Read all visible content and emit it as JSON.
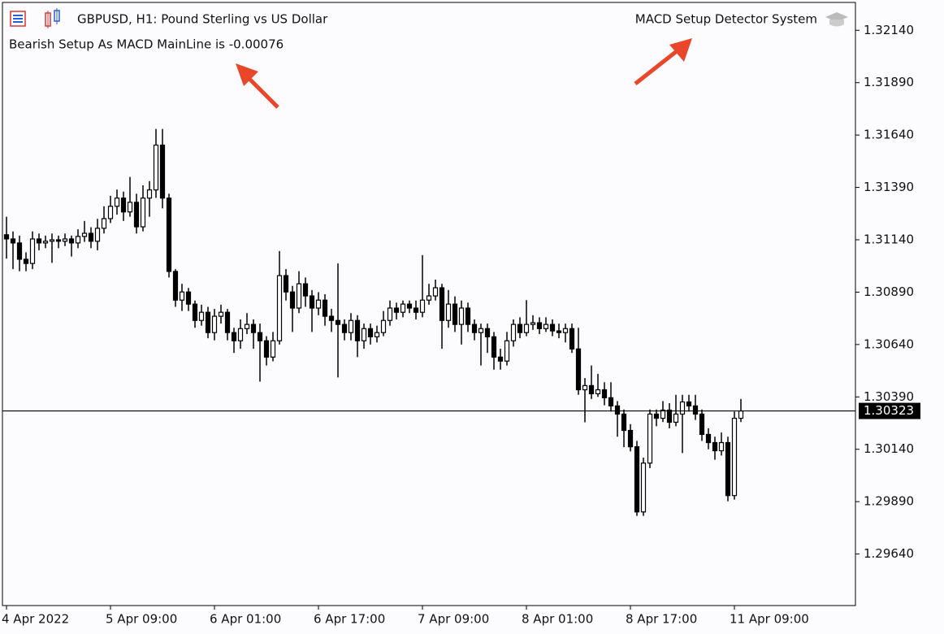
{
  "chart_data": {
    "type": "candlestick",
    "title": "GBPUSD, H1:  Pound Sterling vs US Dollar",
    "annotations": [
      "MACD Setup Detector System",
      "Bearish Setup As MACD MainLine is -0.00076"
    ],
    "current_price": {
      "value": 1.30323,
      "label": "1.30323"
    },
    "up_color": "#ffffff",
    "down_color": "#000000",
    "line_color": "#000000",
    "ylim": [
      1.29394,
      1.32273
    ],
    "yticks": [
      {
        "value": 1.3214,
        "label": "1.32140"
      },
      {
        "value": 1.3189,
        "label": "1.31890"
      },
      {
        "value": 1.3164,
        "label": "1.31640"
      },
      {
        "value": 1.3139,
        "label": "1.31390"
      },
      {
        "value": 1.3114,
        "label": "1.31140"
      },
      {
        "value": 1.3089,
        "label": "1.30890"
      },
      {
        "value": 1.3064,
        "label": "1.30640"
      },
      {
        "value": 1.3039,
        "label": "1.30390"
      },
      {
        "value": 1.3014,
        "label": "1.30140"
      },
      {
        "value": 1.2989,
        "label": "1.29890"
      },
      {
        "value": 1.2964,
        "label": "1.29640"
      }
    ],
    "categories": [
      "4 Apr 2022",
      null,
      null,
      null,
      null,
      null,
      null,
      null,
      null,
      null,
      null,
      null,
      null,
      null,
      null,
      null,
      "5 Apr 09:00",
      null,
      null,
      null,
      null,
      null,
      null,
      null,
      null,
      null,
      null,
      null,
      null,
      null,
      null,
      null,
      "6 Apr 01:00",
      null,
      null,
      null,
      null,
      null,
      null,
      null,
      null,
      null,
      null,
      null,
      null,
      null,
      null,
      null,
      "6 Apr 17:00",
      null,
      null,
      null,
      null,
      null,
      null,
      null,
      null,
      null,
      null,
      null,
      null,
      null,
      null,
      null,
      "7 Apr 09:00",
      null,
      null,
      null,
      null,
      null,
      null,
      null,
      null,
      null,
      null,
      null,
      null,
      null,
      null,
      null,
      "8 Apr 01:00",
      null,
      null,
      null,
      null,
      null,
      null,
      null,
      null,
      null,
      null,
      null,
      null,
      null,
      null,
      null,
      "8 Apr 17:00",
      null,
      null,
      null,
      null,
      null,
      null,
      null,
      null,
      null,
      null,
      null,
      null,
      null,
      null,
      null,
      "11 Apr 09:00",
      null
    ],
    "open": [
      1.31164,
      1.31144,
      1.31125,
      1.31047,
      1.31027,
      1.31144,
      1.31125,
      1.31133,
      1.3114,
      1.31133,
      1.31144,
      1.31125,
      1.31156,
      1.31171,
      1.31133,
      1.31195,
      1.31241,
      1.313,
      1.31339,
      1.31273,
      1.31319,
      1.31202,
      1.31339,
      1.31378,
      1.31592,
      1.31339,
      1.30989,
      1.30852,
      1.30891,
      1.30833,
      1.30755,
      1.30794,
      1.30697,
      1.30775,
      1.30794,
      1.30697,
      1.30658,
      1.30716,
      1.30736,
      1.30697,
      1.30658,
      1.3058,
      1.30658,
      1.30969,
      1.30891,
      1.30814,
      1.3093,
      1.30872,
      1.30814,
      1.30852,
      1.30775,
      1.30755,
      1.30736,
      1.30697,
      1.30755,
      1.30658,
      1.30716,
      1.30677,
      1.30697,
      1.30755,
      1.30814,
      1.30794,
      1.30833,
      1.30814,
      1.30794,
      1.30852,
      1.30872,
      1.30911,
      1.30755,
      1.30833,
      1.30736,
      1.30814,
      1.30736,
      1.30697,
      1.30716,
      1.30677,
      1.3058,
      1.30561,
      1.30658,
      1.30736,
      1.30697,
      1.30736,
      1.30744,
      1.30716,
      1.30736,
      1.30705,
      1.30697,
      1.30716,
      1.30619,
      1.30424,
      1.30444,
      1.30405,
      1.30424,
      1.30386,
      1.30347,
      1.30308,
      1.3023,
      1.30152,
      1.29841,
      1.30074,
      1.30308,
      1.30288,
      1.30327,
      1.30269,
      1.30308,
      1.30366,
      1.30347,
      1.30308,
      1.30211,
      1.30172,
      1.30133,
      1.30172,
      1.29919,
      1.30288
    ],
    "high": [
      1.3125,
      1.3118,
      1.3116,
      1.3108,
      1.3118,
      1.3117,
      1.3116,
      1.3117,
      1.3116,
      1.3117,
      1.3116,
      1.3119,
      1.3123,
      1.312,
      1.3124,
      1.313,
      1.3135,
      1.3138,
      1.3137,
      1.3144,
      1.3136,
      1.314,
      1.3142,
      1.31669,
      1.31669,
      1.3136,
      1.31,
      1.3093,
      1.3091,
      1.3085,
      1.3083,
      1.3082,
      1.3081,
      1.3083,
      1.3081,
      1.3072,
      1.3076,
      1.3079,
      1.3076,
      1.3074,
      1.3068,
      1.307,
      1.31086,
      1.31,
      1.3092,
      1.3099,
      1.3096,
      1.309,
      1.3089,
      1.3088,
      1.3081,
      1.31027,
      1.3076,
      1.3079,
      1.3078,
      1.3074,
      1.3074,
      1.3073,
      1.308,
      1.3085,
      1.3084,
      1.3085,
      1.3085,
      1.3085,
      1.31067,
      1.3093,
      1.3095,
      1.3093,
      1.309,
      1.3087,
      1.3085,
      1.3084,
      1.3076,
      1.3074,
      1.3074,
      1.307,
      1.3062,
      1.307,
      1.3076,
      1.3077,
      1.30852,
      1.3078,
      1.3077,
      1.3077,
      1.3076,
      1.3074,
      1.3074,
      1.3074,
      1.3072,
      1.3048,
      1.3054,
      1.305,
      1.3046,
      1.3046,
      1.3037,
      1.3033,
      1.3026,
      1.3018,
      1.301,
      1.3033,
      1.3033,
      1.3037,
      1.3036,
      1.304,
      1.304,
      1.304,
      1.304,
      1.3033,
      1.3024,
      1.302,
      1.3022,
      1.302,
      1.3032,
      1.3038
    ],
    "low": [
      1.3105,
      1.31,
      1.3099,
      1.3099,
      1.31,
      1.3109,
      1.311,
      1.3103,
      1.311,
      1.3111,
      1.3106,
      1.311,
      1.3113,
      1.311,
      1.3109,
      1.3117,
      1.3122,
      1.3126,
      1.3123,
      1.3125,
      1.3117,
      1.3118,
      1.3125,
      1.3134,
      1.3129,
      1.3096,
      1.3082,
      1.308,
      1.308,
      1.3072,
      1.3073,
      1.3067,
      1.3066,
      1.3074,
      1.3066,
      1.306,
      1.3062,
      1.3069,
      1.3062,
      1.30463,
      1.3054,
      1.3056,
      1.3064,
      1.3085,
      1.307,
      1.3079,
      1.3082,
      1.307,
      1.3078,
      1.3073,
      1.307,
      1.30483,
      1.3066,
      1.3066,
      1.3058,
      1.3062,
      1.3064,
      1.3065,
      1.3068,
      1.3073,
      1.3076,
      1.3077,
      1.3079,
      1.3076,
      1.3077,
      1.3083,
      1.3085,
      1.3062,
      1.3072,
      1.307,
      1.3064,
      1.307,
      1.3066,
      1.3054,
      1.306,
      1.3052,
      1.3052,
      1.3054,
      1.3063,
      1.3067,
      1.3068,
      1.3071,
      1.3069,
      1.307,
      1.3068,
      1.3067,
      1.3065,
      1.306,
      1.304,
      1.30269,
      1.3038,
      1.3039,
      1.3035,
      1.3032,
      1.302,
      1.3015,
      1.3013,
      1.29822,
      1.29822,
      1.3005,
      1.3025,
      1.3027,
      1.3024,
      1.3025,
      1.30122,
      1.3032,
      1.3028,
      1.3018,
      1.3014,
      1.3009,
      1.3011,
      1.29892,
      1.299,
      1.3027
    ],
    "close": [
      1.31144,
      1.31125,
      1.31047,
      1.31027,
      1.31144,
      1.31125,
      1.31133,
      1.3114,
      1.31133,
      1.31144,
      1.31125,
      1.31156,
      1.31171,
      1.31133,
      1.31195,
      1.31241,
      1.313,
      1.31339,
      1.31273,
      1.31319,
      1.31202,
      1.31339,
      1.31378,
      1.31592,
      1.31339,
      1.30989,
      1.30852,
      1.30891,
      1.30833,
      1.30755,
      1.30794,
      1.30697,
      1.30775,
      1.30794,
      1.30697,
      1.30658,
      1.30716,
      1.30736,
      1.30697,
      1.30658,
      1.3058,
      1.30658,
      1.30969,
      1.30891,
      1.30814,
      1.3093,
      1.30872,
      1.30814,
      1.30852,
      1.30775,
      1.30755,
      1.30736,
      1.30697,
      1.30755,
      1.30658,
      1.30716,
      1.30677,
      1.30697,
      1.30755,
      1.30814,
      1.30794,
      1.30833,
      1.30814,
      1.30794,
      1.30852,
      1.30872,
      1.30911,
      1.30755,
      1.30833,
      1.30736,
      1.30814,
      1.30736,
      1.30697,
      1.30716,
      1.30677,
      1.3058,
      1.30561,
      1.30658,
      1.30736,
      1.30697,
      1.30736,
      1.30744,
      1.30716,
      1.30736,
      1.30705,
      1.30697,
      1.30716,
      1.30619,
      1.30424,
      1.30444,
      1.30405,
      1.30424,
      1.30386,
      1.30347,
      1.30308,
      1.3023,
      1.30152,
      1.29841,
      1.30074,
      1.30308,
      1.30288,
      1.30327,
      1.30269,
      1.30308,
      1.30366,
      1.30347,
      1.30308,
      1.30211,
      1.30172,
      1.30133,
      1.30172,
      1.29919,
      1.30288,
      1.30323
    ]
  }
}
